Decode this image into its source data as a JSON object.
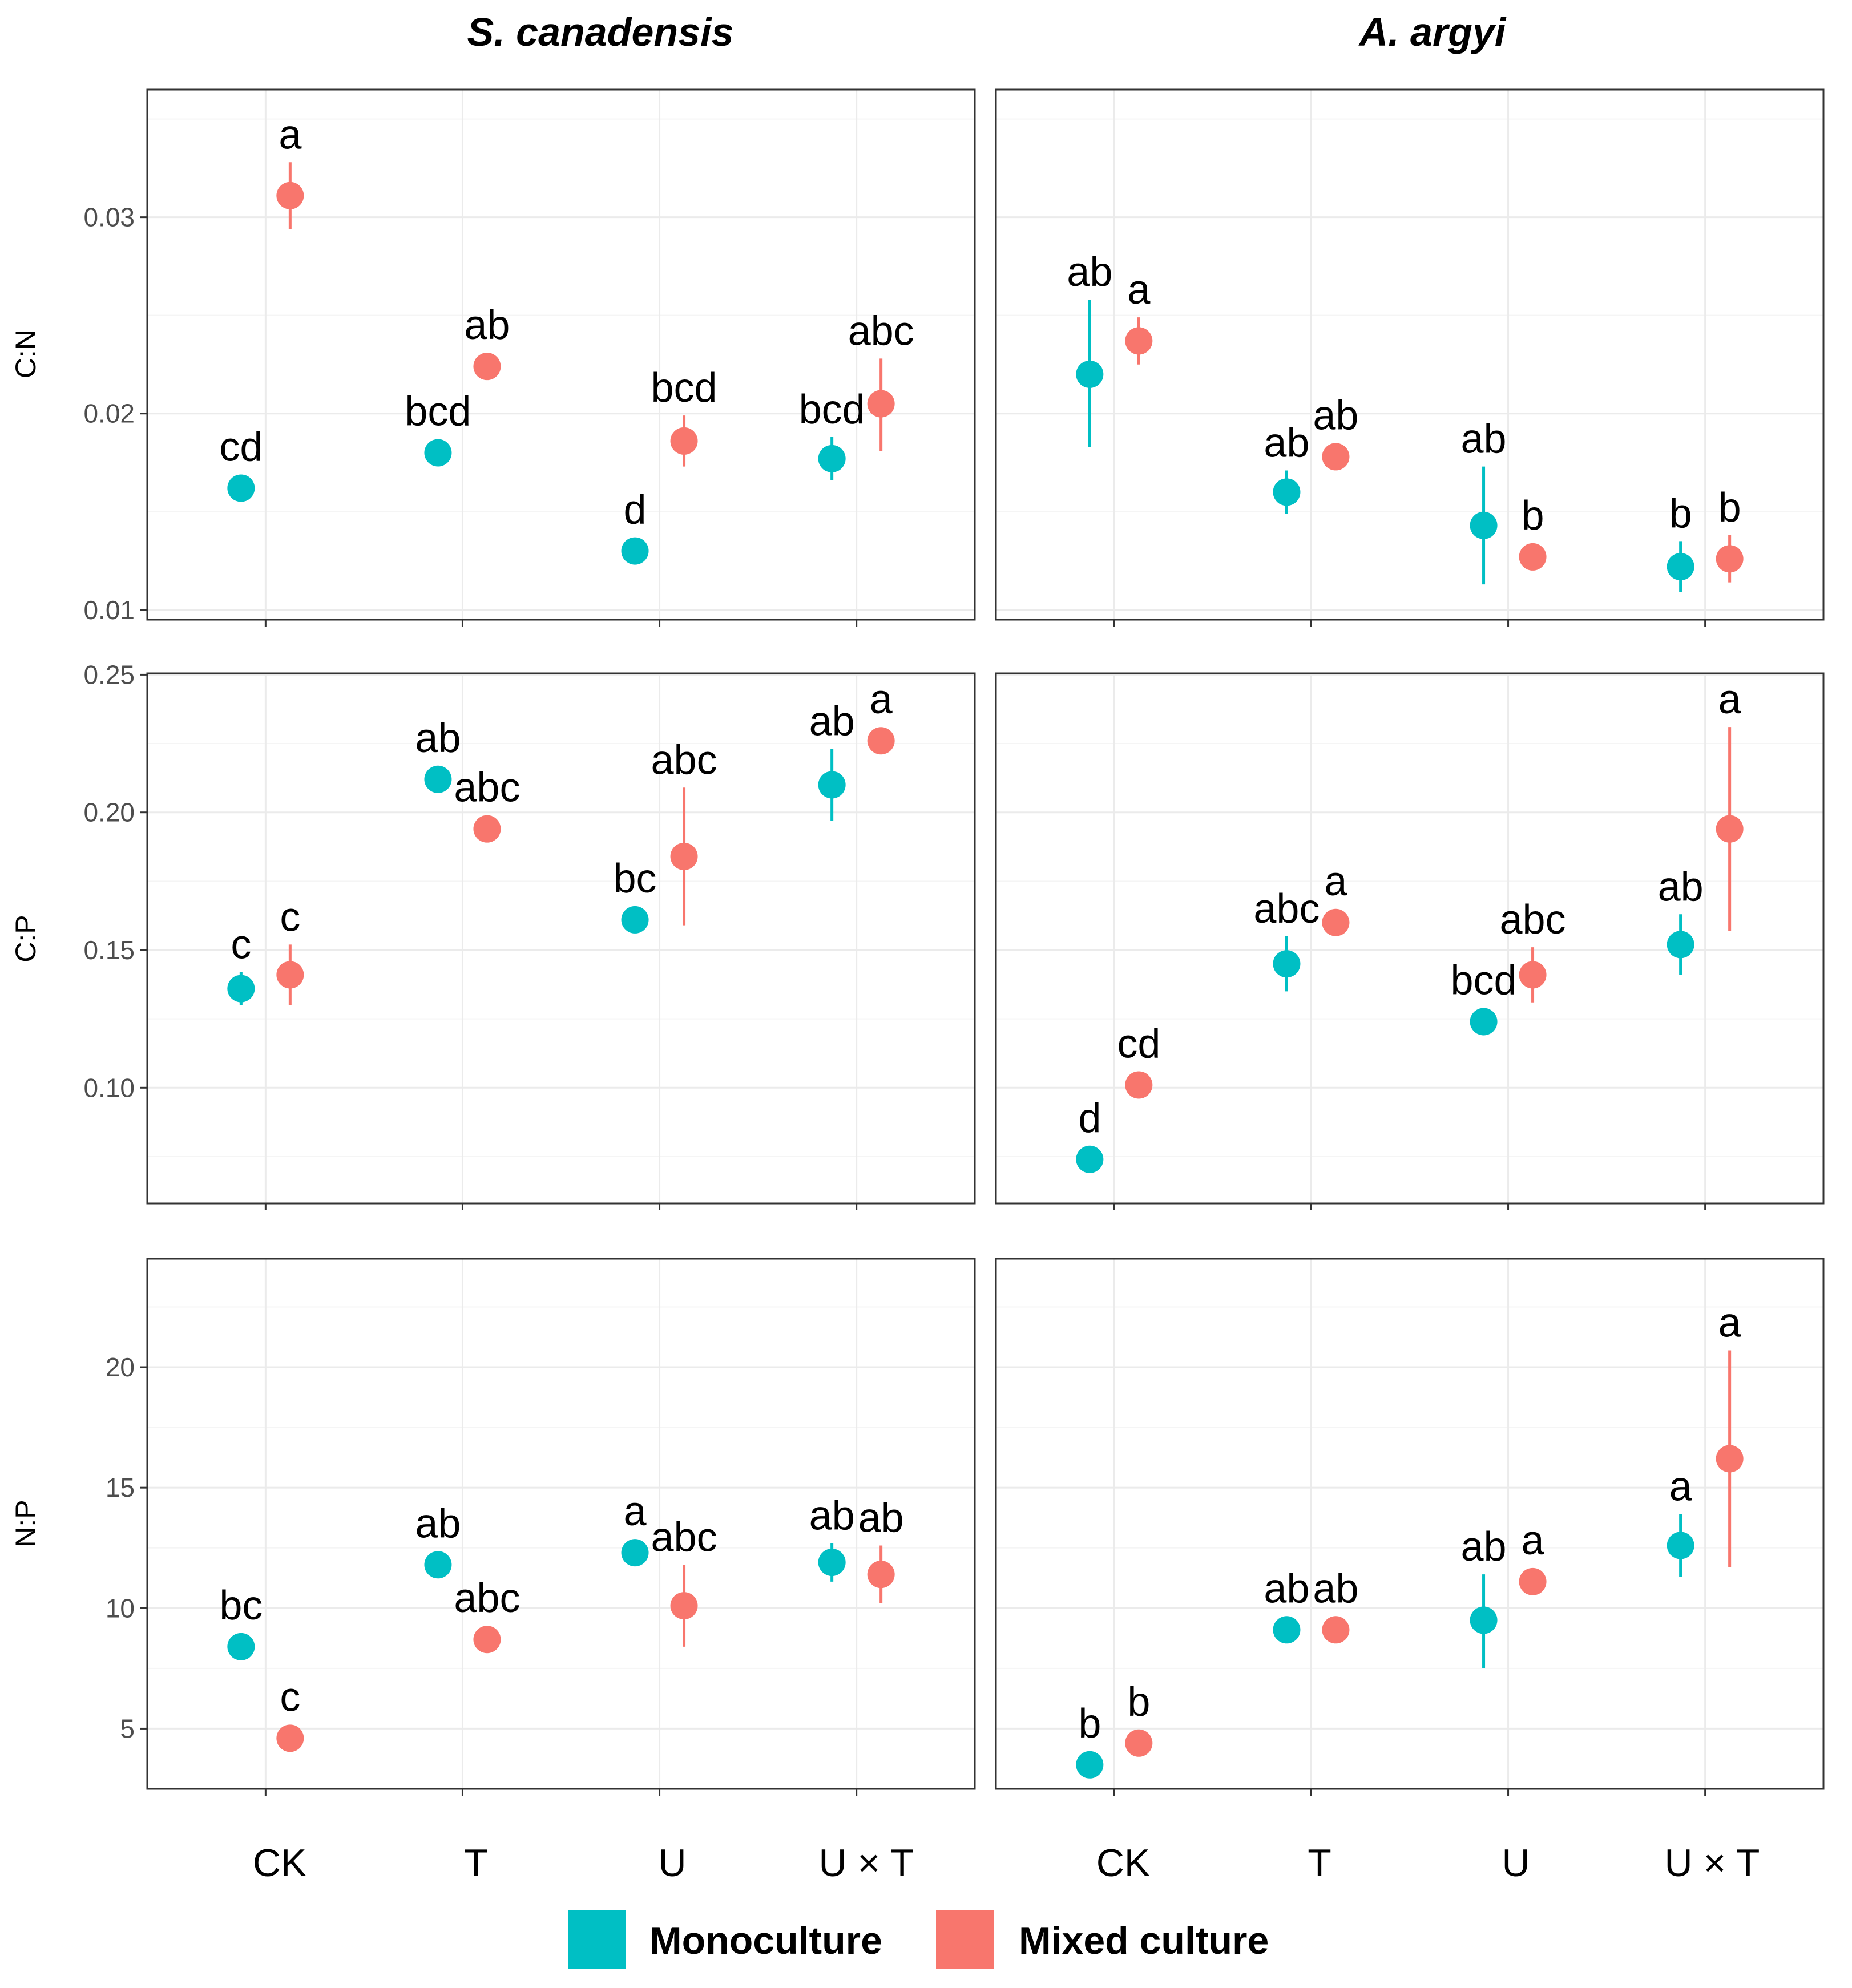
{
  "figure": {
    "x_categories": [
      "CK",
      "T",
      "U",
      "U × T"
    ],
    "column_titles": [
      "S. canadensis",
      "A. argyi"
    ],
    "row_labels": [
      "C:N",
      "C:P",
      "N:P"
    ]
  },
  "legend": {
    "items": [
      {
        "label": "Monoculture",
        "color": "#00BFC4"
      },
      {
        "label": "Mixed culture",
        "color": "#F8766D"
      }
    ]
  },
  "colors": {
    "monoculture": "#00BFC4",
    "mixed": "#F8766D",
    "grid_major": "#EBEBEB",
    "grid_minor": "#F5F5F5",
    "panel_border": "#333333"
  },
  "chart_data": [
    {
      "type": "scatter",
      "panel": "S. canadensis / C:N",
      "col": 0,
      "row": 0,
      "ylabel": "C:N",
      "ylim": [
        0.0095,
        0.0365
      ],
      "yticks": [
        0.01,
        0.02,
        0.03
      ],
      "ytick_labels": [
        "0.01",
        "0.02",
        "0.03"
      ],
      "categories": [
        "CK",
        "T",
        "U",
        "U × T"
      ],
      "series": [
        {
          "name": "Monoculture",
          "values": [
            0.0162,
            0.018,
            0.013,
            0.0177
          ],
          "lower": [
            0.0159,
            0.0177,
            0.0127,
            0.0166
          ],
          "upper": [
            0.0165,
            0.0183,
            0.0133,
            0.0188
          ],
          "labels": [
            "cd",
            "bcd",
            "d",
            "bcd"
          ]
        },
        {
          "name": "Mixed culture",
          "values": [
            0.0311,
            0.0224,
            0.0186,
            0.0205
          ],
          "lower": [
            0.0294,
            0.0221,
            0.0173,
            0.0181
          ],
          "upper": [
            0.0328,
            0.0227,
            0.0199,
            0.0228
          ],
          "labels": [
            "a",
            "ab",
            "bcd",
            "abc"
          ]
        }
      ]
    },
    {
      "type": "scatter",
      "panel": "A. argyi / C:N",
      "col": 1,
      "row": 0,
      "ylabel": "C:N",
      "ylim": [
        0.0095,
        0.0365
      ],
      "yticks": [
        0.01,
        0.02,
        0.03
      ],
      "ytick_labels": [
        "0.01",
        "0.02",
        "0.03"
      ],
      "categories": [
        "CK",
        "T",
        "U",
        "U × T"
      ],
      "series": [
        {
          "name": "Monoculture",
          "values": [
            0.022,
            0.016,
            0.0143,
            0.0122
          ],
          "lower": [
            0.0183,
            0.0149,
            0.0113,
            0.0109
          ],
          "upper": [
            0.0258,
            0.0171,
            0.0173,
            0.0135
          ],
          "labels": [
            "ab",
            "ab",
            "ab",
            "b"
          ]
        },
        {
          "name": "Mixed culture",
          "values": [
            0.0237,
            0.0178,
            0.0127,
            0.0126
          ],
          "lower": [
            0.0225,
            0.0173,
            0.0123,
            0.0114
          ],
          "upper": [
            0.0249,
            0.0183,
            0.0131,
            0.0138
          ],
          "labels": [
            "a",
            "ab",
            "b",
            "b"
          ]
        }
      ]
    },
    {
      "type": "scatter",
      "panel": "S. canadensis / C:P",
      "col": 0,
      "row": 1,
      "ylabel": "C:P",
      "ylim": [
        0.058,
        0.2505
      ],
      "yticks": [
        0.1,
        0.15,
        0.2,
        0.25
      ],
      "ytick_labels": [
        "0.10",
        "0.15",
        "0.20",
        "0.25"
      ],
      "categories": [
        "CK",
        "T",
        "U",
        "U × T"
      ],
      "series": [
        {
          "name": "Monoculture",
          "values": [
            0.136,
            0.212,
            0.161,
            0.21
          ],
          "lower": [
            0.13,
            0.209,
            0.159,
            0.197
          ],
          "upper": [
            0.142,
            0.215,
            0.163,
            0.223
          ],
          "labels": [
            "c",
            "ab",
            "bc",
            "ab"
          ]
        },
        {
          "name": "Mixed culture",
          "values": [
            0.141,
            0.194,
            0.184,
            0.226
          ],
          "lower": [
            0.13,
            0.191,
            0.159,
            0.223
          ],
          "upper": [
            0.152,
            0.197,
            0.209,
            0.229
          ],
          "labels": [
            "c",
            "abc",
            "abc",
            "a"
          ]
        }
      ]
    },
    {
      "type": "scatter",
      "panel": "A. argyi / C:P",
      "col": 1,
      "row": 1,
      "ylabel": "C:P",
      "ylim": [
        0.058,
        0.2505
      ],
      "yticks": [
        0.1,
        0.15,
        0.2,
        0.25
      ],
      "ytick_labels": [
        "0.10",
        "0.15",
        "0.20",
        "0.25"
      ],
      "categories": [
        "CK",
        "T",
        "U",
        "U × T"
      ],
      "series": [
        {
          "name": "Monoculture",
          "values": [
            0.074,
            0.145,
            0.124,
            0.152
          ],
          "lower": [
            0.071,
            0.135,
            0.122,
            0.141
          ],
          "upper": [
            0.077,
            0.155,
            0.126,
            0.163
          ],
          "labels": [
            "d",
            "abc",
            "bcd",
            "ab"
          ]
        },
        {
          "name": "Mixed culture",
          "values": [
            0.101,
            0.16,
            0.141,
            0.194
          ],
          "lower": [
            0.099,
            0.157,
            0.131,
            0.157
          ],
          "upper": [
            0.103,
            0.163,
            0.151,
            0.231
          ],
          "labels": [
            "cd",
            "a",
            "abc",
            "a"
          ]
        }
      ]
    },
    {
      "type": "scatter",
      "panel": "S. canadensis / N:P",
      "col": 0,
      "row": 2,
      "ylabel": "N:P",
      "ylim": [
        2.5,
        24.5
      ],
      "yticks": [
        5,
        10,
        15,
        20
      ],
      "ytick_labels": [
        "5",
        "10",
        "15",
        "20"
      ],
      "categories": [
        "CK",
        "T",
        "U",
        "U × T"
      ],
      "series": [
        {
          "name": "Monoculture",
          "values": [
            8.4,
            11.8,
            12.3,
            11.9
          ],
          "lower": [
            8.2,
            11.6,
            12.0,
            11.1
          ],
          "upper": [
            8.6,
            12.0,
            12.6,
            12.7
          ],
          "labels": [
            "bc",
            "ab",
            "a",
            "ab"
          ]
        },
        {
          "name": "Mixed culture",
          "values": [
            4.6,
            8.7,
            10.1,
            11.4
          ],
          "lower": [
            4.4,
            8.5,
            8.4,
            10.2
          ],
          "upper": [
            4.8,
            8.9,
            11.8,
            12.6
          ],
          "labels": [
            "c",
            "abc",
            "abc",
            "ab"
          ]
        }
      ]
    },
    {
      "type": "scatter",
      "panel": "A. argyi / N:P",
      "col": 1,
      "row": 2,
      "ylabel": "N:P",
      "ylim": [
        2.5,
        24.5
      ],
      "yticks": [
        5,
        10,
        15,
        20
      ],
      "ytick_labels": [
        "5",
        "10",
        "15",
        "20"
      ],
      "categories": [
        "CK",
        "T",
        "U",
        "U × T"
      ],
      "series": [
        {
          "name": "Monoculture",
          "values": [
            3.5,
            9.1,
            9.5,
            12.6
          ],
          "lower": [
            3.3,
            8.9,
            7.5,
            11.3
          ],
          "upper": [
            3.7,
            9.3,
            11.4,
            13.9
          ],
          "labels": [
            "b",
            "ab",
            "ab",
            "a"
          ]
        },
        {
          "name": "Mixed culture",
          "values": [
            4.4,
            9.1,
            11.1,
            16.2
          ],
          "lower": [
            4.2,
            8.9,
            10.9,
            11.7
          ],
          "upper": [
            4.6,
            9.3,
            11.3,
            20.7
          ],
          "labels": [
            "b",
            "ab",
            "a",
            "a"
          ]
        }
      ]
    }
  ]
}
